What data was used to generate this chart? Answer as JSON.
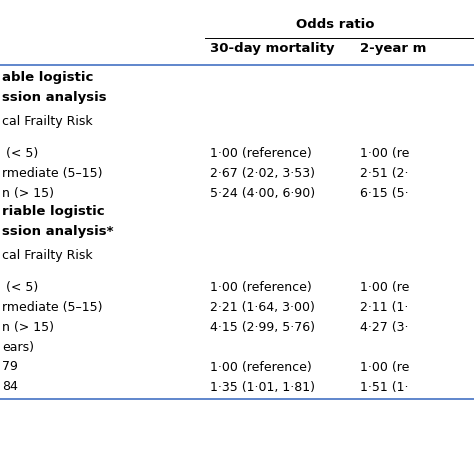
{
  "title": "Odds ratio",
  "col1_header": "30-day mortality",
  "col2_header": "2-year m",
  "background_color": "#ffffff",
  "header_line_color": "#000000",
  "header_line2_color": "#4472c4",
  "rows": [
    {
      "label": "able logistic\nssion analysis",
      "label_bold": true,
      "col1": "",
      "col2": ""
    },
    {
      "label": "cal Frailty Risk",
      "label_bold": false,
      "col1": "",
      "col2": ""
    },
    {
      "label": "",
      "label_bold": false,
      "col1": "",
      "col2": ""
    },
    {
      "label": " (< 5)",
      "label_bold": false,
      "col1": "1·00 (reference)",
      "col2": "1·00 (re"
    },
    {
      "label": "rmediate (5–15)",
      "label_bold": false,
      "col1": "2·67 (2·02, 3·53)",
      "col2": "2·51 (2·"
    },
    {
      "label": "n (> 15)",
      "label_bold": false,
      "col1": "5·24 (4·00, 6·90)",
      "col2": "6·15 (5·"
    },
    {
      "label": "riable logistic\nssion analysis*",
      "label_bold": true,
      "col1": "",
      "col2": ""
    },
    {
      "label": "cal Frailty Risk",
      "label_bold": false,
      "col1": "",
      "col2": ""
    },
    {
      "label": "",
      "label_bold": false,
      "col1": "",
      "col2": ""
    },
    {
      "label": " (< 5)",
      "label_bold": false,
      "col1": "1·00 (reference)",
      "col2": "1·00 (re"
    },
    {
      "label": "rmediate (5–15)",
      "label_bold": false,
      "col1": "2·21 (1·64, 3·00)",
      "col2": "2·11 (1·"
    },
    {
      "label": "n (> 15)",
      "label_bold": false,
      "col1": "4·15 (2·99, 5·76)",
      "col2": "4·27 (3·"
    },
    {
      "label": "ears)",
      "label_bold": false,
      "col1": "",
      "col2": ""
    },
    {
      "label": "79",
      "label_bold": false,
      "col1": "1·00 (reference)",
      "col2": "1·00 (re"
    },
    {
      "label": "84",
      "label_bold": false,
      "col1": "1·35 (1·01, 1·81)",
      "col2": "1·51 (1·"
    }
  ],
  "font_size_header_title": 9.5,
  "font_size_col_header": 9.5,
  "font_size_body": 9.0,
  "text_color": "#000000"
}
